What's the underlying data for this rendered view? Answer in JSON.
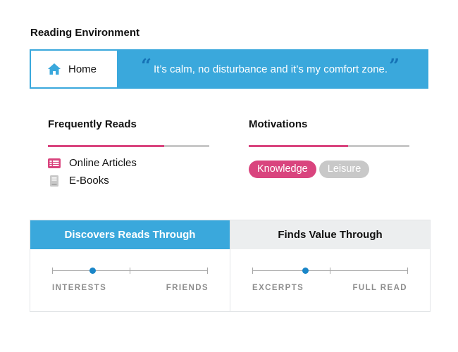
{
  "section_title": "Reading Environment",
  "environment": {
    "location_label": "Home",
    "location_icon": "home-icon",
    "quote": "It’s calm, no disturbance and it’s my comfort zone.",
    "quote_open": "“",
    "quote_close": "”"
  },
  "frequently_reads": {
    "title": "Frequently Reads",
    "progress": 0.72,
    "items": [
      {
        "label": "Online Articles",
        "icon": "article-icon"
      },
      {
        "label": "E-Books",
        "icon": "ebook-icon"
      }
    ]
  },
  "motivations": {
    "title": "Motivations",
    "progress": 0.62,
    "tags": [
      {
        "label": "Knowledge",
        "active": true
      },
      {
        "label": "Leisure",
        "active": false
      }
    ]
  },
  "discovers": {
    "title": "Discovers Reads Through",
    "left_label": "INTERESTS",
    "right_label": "FRIENDS",
    "value": 0.26
  },
  "finds_value": {
    "title": "Finds Value Through",
    "left_label": "EXCERPTS",
    "right_label": "FULL READ",
    "value": 0.34
  },
  "colors": {
    "accent_blue": "#3aa8dc",
    "accent_pink": "#d9447e",
    "dot_blue": "#1a86c8",
    "muted_grey": "#c8c8c8"
  }
}
